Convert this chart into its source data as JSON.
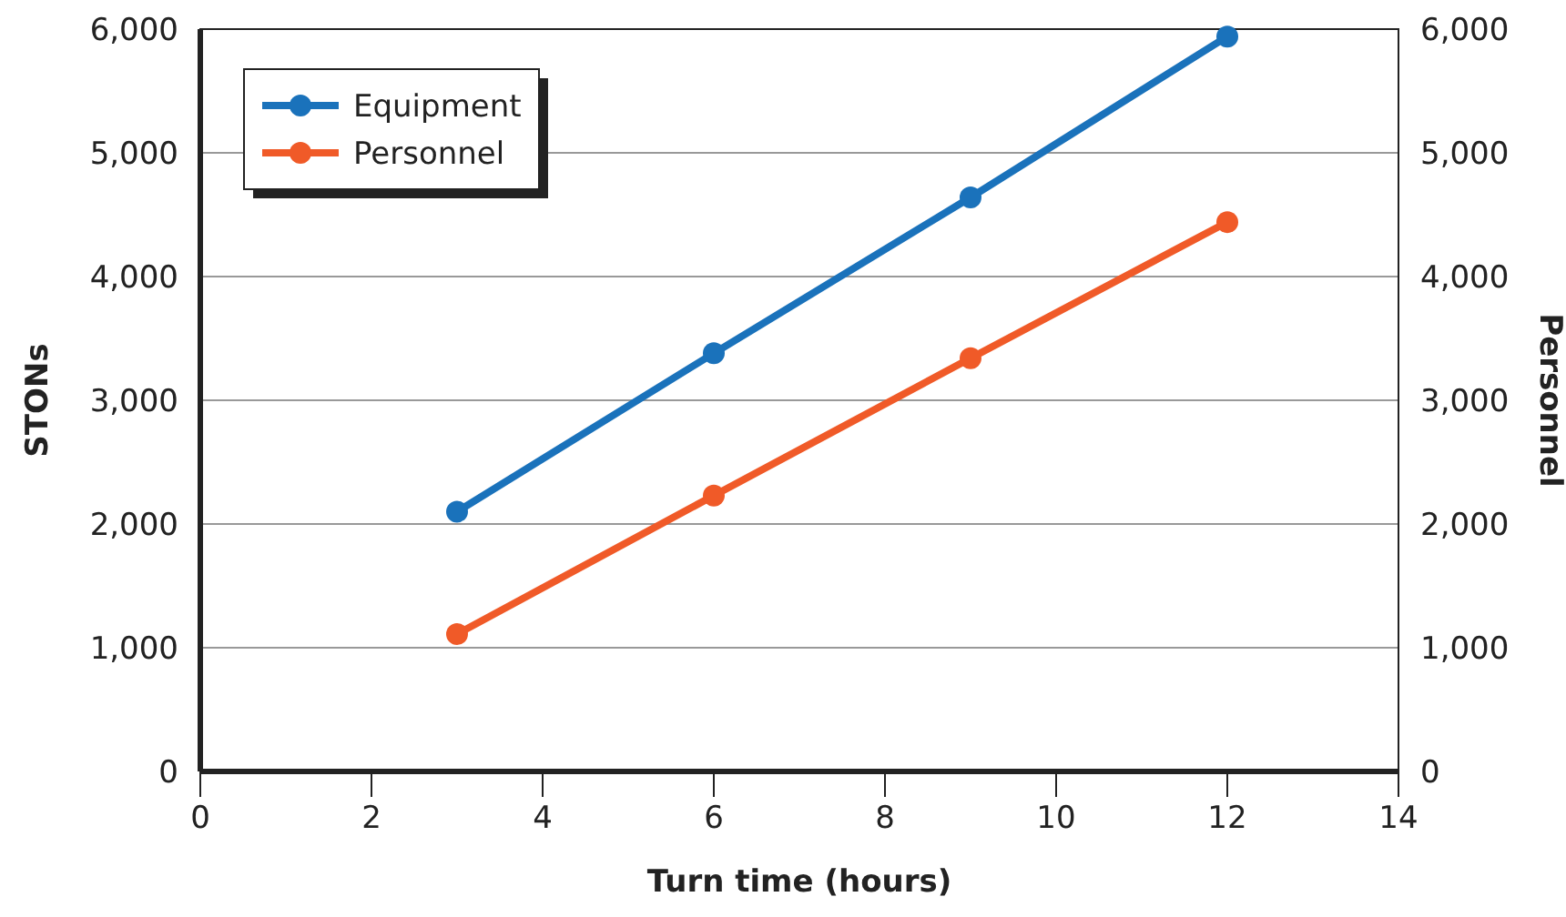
{
  "chart_data": {
    "type": "line",
    "xlabel": "Turn time (hours)",
    "ylabel": "STONs",
    "y2label": "Personnel",
    "x": [
      3,
      6,
      9,
      12
    ],
    "series": [
      {
        "name": "Equipment",
        "color": "#1a72bb",
        "values": [
          2100,
          3380,
          4640,
          5940
        ]
      },
      {
        "name": "Personnel",
        "color": "#f05a28",
        "values": [
          1110,
          2230,
          3340,
          4440
        ]
      }
    ],
    "xlim": [
      0,
      14
    ],
    "xticks": [
      0,
      2,
      4,
      6,
      8,
      10,
      12,
      14
    ],
    "ylim": [
      0,
      6000
    ],
    "yticks": [
      {
        "value": 0,
        "label": "0"
      },
      {
        "value": 1000,
        "label": "1,000"
      },
      {
        "value": 2000,
        "label": "2,000"
      },
      {
        "value": 3000,
        "label": "3,000"
      },
      {
        "value": 4000,
        "label": "4,000"
      },
      {
        "value": 5000,
        "label": "5,000"
      },
      {
        "value": 6000,
        "label": "6,000"
      }
    ],
    "y2lim": [
      0,
      6000
    ],
    "y2ticks": [
      {
        "value": 0,
        "label": "0"
      },
      {
        "value": 1000,
        "label": "1,000"
      },
      {
        "value": 2000,
        "label": "2,000"
      },
      {
        "value": 3000,
        "label": "3,000"
      },
      {
        "value": 4000,
        "label": "4,000"
      },
      {
        "value": 5000,
        "label": "5,000"
      },
      {
        "value": 6000,
        "label": "6,000"
      }
    ],
    "grid": "y",
    "legend": "top left",
    "marker": "circle",
    "line_style": "solid"
  }
}
